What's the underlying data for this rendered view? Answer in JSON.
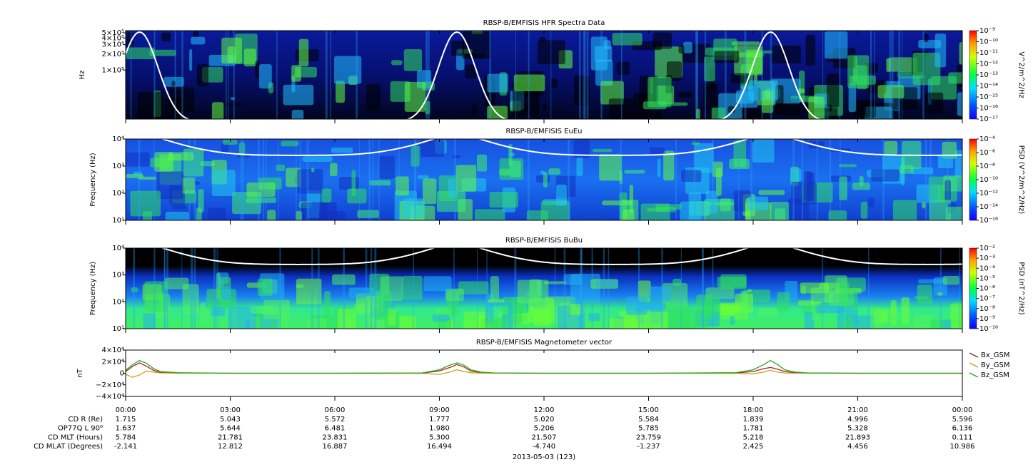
{
  "chart_data": [
    {
      "type": "spectrogram",
      "title": "RBSP-B/EMFISIS  HFR Spectra Data",
      "ylabel": "Hz",
      "ylog": true,
      "ylim": [
        12000,
        550000
      ],
      "yticks": [
        {
          "value": 100000,
          "label": "1×10⁵"
        },
        {
          "value": 200000,
          "label": "2×10⁵"
        },
        {
          "value": 300000,
          "label": "3×10⁵"
        },
        {
          "value": 400000,
          "label": "4×10⁵"
        },
        {
          "value": 500000,
          "label": "5×10⁵"
        }
      ],
      "colorbar": {
        "label": "V^2/m^2/Hz",
        "log": true,
        "lim": [
          1e-17,
          1e-09
        ],
        "ticks": [
          {
            "value": 1e-09,
            "label": "10⁻⁹"
          },
          {
            "value": 1e-10,
            "label": "10⁻¹⁰"
          },
          {
            "value": 1e-11,
            "label": "10⁻¹¹"
          },
          {
            "value": 1e-12,
            "label": "10⁻¹²"
          },
          {
            "value": 1e-13,
            "label": "10⁻¹³"
          },
          {
            "value": 1e-14,
            "label": "10⁻¹⁴"
          },
          {
            "value": 1e-15,
            "label": "10⁻¹⁵"
          },
          {
            "value": 1e-16,
            "label": "10⁻¹⁶"
          },
          {
            "value": 1e-17,
            "label": "10⁻¹⁷"
          }
        ]
      }
    },
    {
      "type": "spectrogram",
      "title": "RBSP-B/EMFISIS  EuEu",
      "ylabel": "Frequency (Hz)",
      "ylog": true,
      "ylim": [
        10,
        10000
      ],
      "yticks": [
        {
          "value": 10,
          "label": "10¹"
        },
        {
          "value": 100,
          "label": "10²"
        },
        {
          "value": 1000,
          "label": "10³"
        },
        {
          "value": 10000,
          "label": "10⁴"
        }
      ],
      "colorbar": {
        "label": "PSD (V^2/m^2/Hz)",
        "log": true,
        "lim": [
          1e-16,
          0.0001
        ],
        "ticks": [
          {
            "value": 0.0001,
            "label": "10⁻⁴"
          },
          {
            "value": 1e-06,
            "label": "10⁻⁶"
          },
          {
            "value": 1e-08,
            "label": "10⁻⁸"
          },
          {
            "value": 1e-10,
            "label": "10⁻¹⁰"
          },
          {
            "value": 1e-12,
            "label": "10⁻¹²"
          },
          {
            "value": 1e-14,
            "label": "10⁻¹⁴"
          },
          {
            "value": 1e-16,
            "label": "10⁻¹⁶"
          }
        ]
      }
    },
    {
      "type": "spectrogram",
      "title": "RBSP-B/EMFISIS  BuBu",
      "ylabel": "Frequency (Hz)",
      "ylog": true,
      "ylim": [
        10,
        10000
      ],
      "yticks": [
        {
          "value": 10,
          "label": "10¹"
        },
        {
          "value": 100,
          "label": "10²"
        },
        {
          "value": 1000,
          "label": "10³"
        },
        {
          "value": 10000,
          "label": "10⁴"
        }
      ],
      "colorbar": {
        "label": "PSD (nT^2/Hz)",
        "log": true,
        "lim": [
          1e-10,
          0.01
        ],
        "ticks": [
          {
            "value": 0.01,
            "label": "10⁻²"
          },
          {
            "value": 0.001,
            "label": "10⁻³"
          },
          {
            "value": 0.0001,
            "label": "10⁻⁴"
          },
          {
            "value": 1e-05,
            "label": "10⁻⁵"
          },
          {
            "value": 1e-06,
            "label": "10⁻⁶"
          },
          {
            "value": 1e-07,
            "label": "10⁻⁷"
          },
          {
            "value": 1e-08,
            "label": "10⁻⁸"
          },
          {
            "value": 1e-09,
            "label": "10⁻⁹"
          },
          {
            "value": 1e-10,
            "label": "10⁻¹⁰"
          }
        ]
      }
    },
    {
      "type": "line",
      "title": "RBSP-B/EMFISIS  Magnetometer vector",
      "ylabel": "nT",
      "ylim": [
        -40000,
        40000
      ],
      "yticks": [
        {
          "value": -40000,
          "label": "−4×10⁴"
        },
        {
          "value": -20000,
          "label": "−2×10⁴"
        },
        0,
        {
          "value": 20000,
          "label": "2×10⁴"
        },
        {
          "value": 40000,
          "label": "4×10⁴"
        }
      ],
      "xlim": [
        0,
        24
      ],
      "xticks": [
        {
          "value": 0,
          "label": "00:00"
        },
        {
          "value": 3,
          "label": "03:00"
        },
        {
          "value": 6,
          "label": "06:00"
        },
        {
          "value": 9,
          "label": "09:00"
        },
        {
          "value": 12,
          "label": "12:00"
        },
        {
          "value": 15,
          "label": "15:00"
        },
        {
          "value": 18,
          "label": "18:00"
        },
        {
          "value": 21,
          "label": "21:00"
        },
        {
          "value": 24,
          "label": "00:00"
        }
      ],
      "x": [
        0,
        0.2,
        0.4,
        0.6,
        0.8,
        1.0,
        1.5,
        3,
        6,
        8.5,
        9.0,
        9.3,
        9.5,
        9.7,
        9.9,
        10.2,
        10.6,
        12,
        15,
        17.5,
        18.0,
        18.3,
        18.5,
        18.7,
        18.9,
        19.2,
        19.6,
        21,
        24
      ],
      "series": [
        {
          "name": "Bx_GSM",
          "color": "#b22222",
          "values": [
            3000,
            12000,
            18000,
            12000,
            5000,
            1500,
            500,
            0,
            0,
            300,
            4000,
            10000,
            15000,
            11000,
            4000,
            1000,
            300,
            0,
            0,
            500,
            3000,
            8000,
            10000,
            7000,
            3000,
            1000,
            200,
            0,
            0
          ]
        },
        {
          "name": "By_GSM",
          "color": "#c8a020",
          "values": [
            -2000,
            -7000,
            -3000,
            4000,
            2000,
            500,
            0,
            0,
            0,
            -200,
            -2000,
            2000,
            6000,
            3000,
            1000,
            200,
            0,
            0,
            0,
            -300,
            -1000,
            2000,
            5000,
            2000,
            500,
            0,
            0,
            0,
            0
          ]
        },
        {
          "name": "Bz_GSM",
          "color": "#22aa22",
          "values": [
            5000,
            15000,
            22000,
            17000,
            8000,
            3000,
            1000,
            0,
            0,
            500,
            6000,
            14000,
            18000,
            14000,
            6000,
            2000,
            500,
            0,
            0,
            1000,
            6000,
            15000,
            22000,
            15000,
            6000,
            2000,
            500,
            0,
            0
          ]
        }
      ]
    }
  ],
  "ephemeris": {
    "rows": [
      {
        "label": "CD R (Re)",
        "values": [
          "1.715",
          "5.043",
          "5.572",
          "1.777",
          "5.020",
          "5.584",
          "1.839",
          "4.996",
          "5.596"
        ]
      },
      {
        "label": "OP77Q L 90⁰",
        "values": [
          "1.637",
          "5.644",
          "6.481",
          "1.980",
          "5.206",
          "5.785",
          "1.781",
          "5.328",
          "6.136"
        ]
      },
      {
        "label": "CD MLT (Hours)",
        "values": [
          "5.784",
          "21.781",
          "23.831",
          "5.300",
          "21.507",
          "23.759",
          "5.218",
          "21.893",
          "0.111"
        ]
      },
      {
        "label": "CD MLAT (Degrees)",
        "values": [
          "-2.141",
          "12.812",
          "16.887",
          "16.494",
          "-4.740",
          "-1.237",
          "2.425",
          "4.456",
          "10.986"
        ]
      }
    ]
  },
  "date_label": "2013-05-03 (123)"
}
